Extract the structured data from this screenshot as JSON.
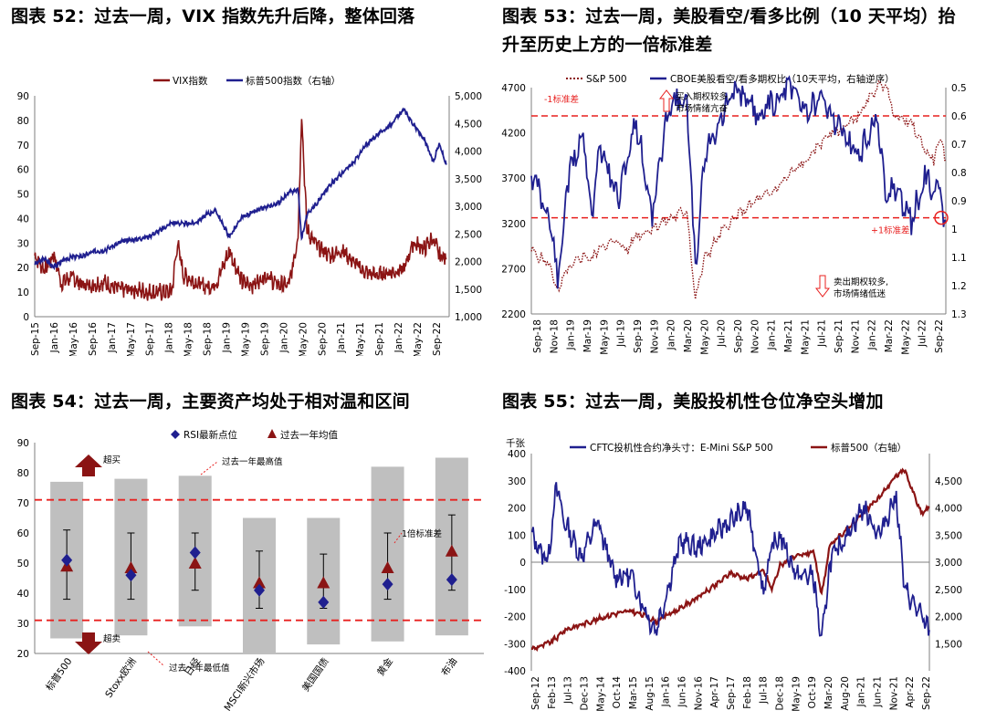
{
  "panels": [
    {
      "title": "图表 52：过去一周，VIX 指数先升后降，整体回落"
    },
    {
      "title_lines": [
        "图表 53：过去一周，美股看空/看多比例（10 天平均）抬",
        "升至历史上方的一倍标准差"
      ]
    },
    {
      "title": "图表 54：过去一周，主要资产均处于相对温和区间"
    },
    {
      "title": "图表 55：过去一周，美股投机性仓位净空头增加"
    }
  ],
  "colors": {
    "navy": "#1f1f8f",
    "maroon": "#8b1414",
    "red": "#e8201f",
    "gray": "#bfbfbf"
  },
  "chart_data": [
    {
      "id": "c52",
      "type": "line",
      "legend": [
        "VIX指数",
        "标普500指数（右轴）"
      ],
      "x_ticks": [
        "Sep-15",
        "Jan-16",
        "May-16",
        "Sep-16",
        "Jan-17",
        "May-17",
        "Sep-17",
        "Jan-18",
        "May-18",
        "Sep-18",
        "Jan-19",
        "May-19",
        "Sep-19",
        "Jan-20",
        "May-20",
        "Sep-20",
        "Jan-21",
        "May-21",
        "Sep-21",
        "Jan-22",
        "May-22",
        "Sep-22"
      ],
      "x": [
        2015.67,
        2015.83,
        2016.0,
        2016.12,
        2016.3,
        2016.5,
        2016.67,
        2016.85,
        2017.0,
        2017.2,
        2017.4,
        2017.6,
        2017.8,
        2018.0,
        2018.1,
        2018.2,
        2018.4,
        2018.6,
        2018.75,
        2018.98,
        2019.2,
        2019.4,
        2019.6,
        2019.8,
        2020.0,
        2020.15,
        2020.21,
        2020.3,
        2020.5,
        2020.7,
        2020.9,
        2021.1,
        2021.3,
        2021.5,
        2021.7,
        2021.95,
        2022.1,
        2022.3,
        2022.45,
        2022.55,
        2022.67
      ],
      "series": [
        {
          "name": "VIX指数",
          "axis": "left",
          "values": [
            25,
            19,
            25,
            14,
            16,
            13,
            13,
            14,
            12,
            11,
            11,
            10,
            10,
            10,
            30,
            17,
            14,
            12,
            13,
            27,
            14,
            13,
            17,
            13,
            13,
            33,
            83,
            35,
            28,
            25,
            27,
            22,
            18,
            17,
            18,
            19,
            30,
            28,
            32,
            25,
            24
          ]
        },
        {
          "name": "标普500指数（右轴）",
          "axis": "right",
          "values": [
            1950,
            2050,
            1900,
            2000,
            2080,
            2100,
            2180,
            2200,
            2280,
            2380,
            2400,
            2450,
            2560,
            2700,
            2700,
            2680,
            2700,
            2850,
            2920,
            2450,
            2800,
            2900,
            2980,
            3050,
            3250,
            3300,
            2400,
            2850,
            3100,
            3400,
            3600,
            3800,
            4100,
            4300,
            4450,
            4750,
            4500,
            4200,
            3800,
            4150,
            3750
          ]
        }
      ],
      "ylim_left": [
        0,
        90
      ],
      "yticks_left": [
        "0",
        "10",
        "20",
        "30",
        "40",
        "50",
        "60",
        "70",
        "80",
        "90"
      ],
      "ylim_right": [
        1000,
        5000
      ],
      "yticks_right": [
        "1,000",
        "1,500",
        "2,000",
        "2,500",
        "3,000",
        "3,500",
        "4,000",
        "4,500",
        "5,000"
      ]
    },
    {
      "id": "c53",
      "type": "line",
      "legend": [
        "S&P 500",
        "CBOE美股看空/看多期权比（10天平均，右轴逆序）"
      ],
      "x_ticks": [
        "Sep-18",
        "Nov-18",
        "Jan-19",
        "Mar-19",
        "May-19",
        "Jul-19",
        "Sep-19",
        "Nov-19",
        "Jan-20",
        "Mar-20",
        "May-20",
        "Jul-20",
        "Sep-20",
        "Nov-20",
        "Jan-21",
        "Mar-21",
        "May-21",
        "Jul-21",
        "Sep-21",
        "Nov-21",
        "Jan-22",
        "Mar-22",
        "May-22",
        "Jul-22",
        "Sep-22"
      ],
      "x": [
        0,
        1,
        1.6,
        2,
        3,
        3.5,
        4,
        5,
        5.6,
        6,
        7,
        8,
        9,
        9.5,
        10,
        11,
        12,
        13,
        14,
        15,
        16,
        17,
        18,
        19,
        20,
        20.5,
        21,
        22,
        23,
        23.3,
        23.6,
        24
      ],
      "series": [
        {
          "name": "S&P 500",
          "axis": "left",
          "style": "dotted",
          "values": [
            2900,
            2750,
            2450,
            2650,
            2850,
            2800,
            2950,
            3000,
            2900,
            3050,
            3150,
            3250,
            3350,
            2350,
            2800,
            3100,
            3300,
            3450,
            3550,
            3750,
            3900,
            4150,
            4250,
            4400,
            4700,
            4750,
            4400,
            4300,
            3950,
            3900,
            4150,
            3900
          ]
        },
        {
          "name": "CBOE美股看空/看多期权比（10天平均，右轴逆序）",
          "axis": "right",
          "style": "solid",
          "values": [
            0.8,
            0.95,
            1.2,
            0.85,
            0.65,
            0.95,
            0.7,
            0.9,
            0.75,
            0.6,
            0.95,
            0.55,
            0.55,
            1.15,
            0.75,
            0.6,
            0.5,
            0.6,
            0.55,
            0.5,
            0.58,
            0.55,
            0.65,
            0.75,
            0.6,
            0.9,
            0.85,
            0.97,
            0.8,
            0.9,
            0.85,
            0.98
          ]
        }
      ],
      "ylim_left": [
        2200,
        4700
      ],
      "yticks_left": [
        "2200",
        "2700",
        "3200",
        "3700",
        "4200",
        "4700"
      ],
      "ylim_right": [
        0.5,
        1.3
      ],
      "yticks_right": [
        "0.5",
        "0.6",
        "0.7",
        "0.8",
        "0.9",
        "1",
        "1.1",
        "1.2",
        "1.3"
      ],
      "ref_lines": [
        {
          "label": "-1标准差",
          "value": 0.6
        },
        {
          "label": "+1标准差",
          "value": 0.96
        }
      ],
      "annotations": {
        "top": [
          "买入期权较多,",
          "市场情绪亢奋"
        ],
        "bottom": [
          "卖出期权较多,",
          "市场情绪低迷"
        ]
      }
    },
    {
      "id": "c54",
      "type": "range",
      "legend": [
        "RSI最新点位",
        "过去一年均值"
      ],
      "categories": [
        "标普500",
        "Stoxx欧洲",
        "日经",
        "MSCI新兴市场",
        "美国国债",
        "黄金",
        "布油"
      ],
      "range_high": [
        77,
        78,
        79,
        65,
        65,
        82,
        85
      ],
      "range_low": [
        25,
        26,
        29,
        20,
        23,
        24,
        26
      ],
      "std_high": [
        61,
        60,
        60,
        54,
        53,
        60,
        66
      ],
      "std_low": [
        38,
        38,
        41,
        35,
        35,
        38,
        41
      ],
      "rsi_latest": [
        51,
        46,
        53.5,
        41,
        37,
        43,
        44.5
      ],
      "year_mean": [
        49,
        48.5,
        50,
        43.5,
        43.5,
        48.5,
        54
      ],
      "ylim": [
        20,
        90
      ],
      "yticks": [
        "20",
        "30",
        "40",
        "50",
        "60",
        "70",
        "80",
        "90"
      ],
      "ref_lines": [
        71,
        31
      ],
      "annotations": {
        "overbought": "超买",
        "oversold": "超卖",
        "year_high": "过去一年最高值",
        "year_low": "过去一年最低值",
        "std": "1倍标准差"
      }
    },
    {
      "id": "c55",
      "type": "line",
      "unit": "千张",
      "legend": [
        "CFTC投机性合约净头寸：E-Mini S&P 500",
        "标普500（右轴）"
      ],
      "x_ticks": [
        "Sep-12",
        "Feb-13",
        "Jul-13",
        "Dec-13",
        "May-14",
        "Oct-14",
        "Mar-15",
        "Aug-15",
        "Jan-16",
        "Jun-16",
        "Nov-16",
        "Apr-17",
        "Sep-17",
        "Feb-18",
        "Jul-18",
        "Dec-18",
        "May-19",
        "Oct-19",
        "Mar-20",
        "Aug-20",
        "Jan-21",
        "Jun-21",
        "Nov-21",
        "Apr-22",
        "Sep-22"
      ],
      "x": [
        0,
        1,
        1.5,
        2,
        3,
        4,
        5,
        6,
        7,
        7.5,
        8,
        9,
        10,
        11,
        12,
        13,
        14,
        14.5,
        15,
        16,
        17,
        17.5,
        18,
        19,
        20,
        21,
        22,
        22.5,
        23,
        23.5,
        24
      ],
      "series": [
        {
          "name": "CFTC投机性合约净头寸：E-Mini S&P 500",
          "axis": "left",
          "values": [
            100,
            0,
            280,
            150,
            20,
            150,
            -50,
            -50,
            -200,
            -250,
            -150,
            80,
            50,
            100,
            150,
            200,
            -100,
            50,
            100,
            -50,
            -50,
            -300,
            0,
            100,
            200,
            100,
            250,
            -100,
            -150,
            -200,
            -250
          ]
        },
        {
          "name": "标普500（右轴）",
          "axis": "right",
          "values": [
            1400,
            1500,
            1600,
            1750,
            1850,
            1950,
            2050,
            2100,
            2000,
            1900,
            2000,
            2150,
            2350,
            2550,
            2800,
            2700,
            2850,
            2500,
            2950,
            3100,
            3200,
            2400,
            3300,
            3600,
            3900,
            4200,
            4600,
            4700,
            4300,
            3900,
            4000
          ]
        }
      ],
      "ylim_left": [
        -400,
        400
      ],
      "yticks_left": [
        "-400",
        "-300",
        "-200",
        "-100",
        "0",
        "100",
        "200",
        "300",
        "400"
      ],
      "ylim_right": [
        1000,
        5000
      ],
      "yticks_right": [
        "1,500",
        "2,000",
        "2,500",
        "3,000",
        "3,500",
        "4,000",
        "4,500"
      ]
    }
  ]
}
